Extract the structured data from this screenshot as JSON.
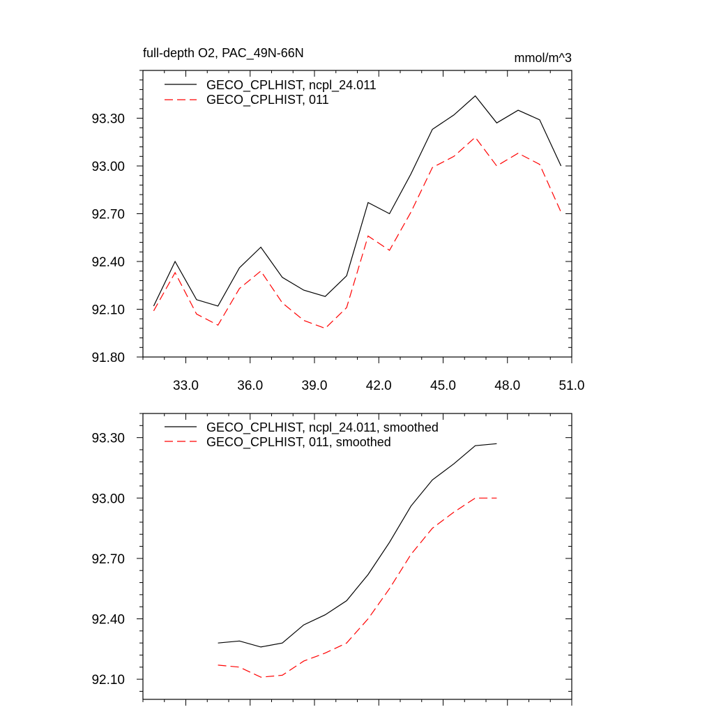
{
  "chart_data": [
    {
      "type": "line",
      "title_left": "full-depth O2, PAC_49N-66N",
      "title_right": "mmol/m^3",
      "xlabel": "",
      "ylabel": "",
      "xlim": [
        31.0,
        51.0
      ],
      "ylim": [
        91.8,
        93.6
      ],
      "xticks": [
        33.0,
        36.0,
        39.0,
        42.0,
        45.0,
        48.0,
        51.0
      ],
      "xtick_labels": [
        "33.0",
        "36.0",
        "39.0",
        "42.0",
        "45.0",
        "48.0",
        "51.0"
      ],
      "yticks": [
        91.8,
        92.1,
        92.4,
        92.7,
        93.0,
        93.3
      ],
      "ytick_labels": [
        "91.80",
        "92.10",
        "92.40",
        "92.70",
        "93.00",
        "93.30"
      ],
      "legend_position": "top-left",
      "series": [
        {
          "name": "GECO_CPLHIST, ncpl_24.011",
          "color": "#000000",
          "dash": "solid",
          "x": [
            31.5,
            32.5,
            33.5,
            34.5,
            35.5,
            36.5,
            37.5,
            38.5,
            39.5,
            40.5,
            41.5,
            42.5,
            43.5,
            44.5,
            45.5,
            46.5,
            47.5,
            48.5,
            49.5,
            50.5
          ],
          "values": [
            92.12,
            92.4,
            92.16,
            92.12,
            92.36,
            92.49,
            92.3,
            92.22,
            92.18,
            92.31,
            92.77,
            92.7,
            92.95,
            93.23,
            93.32,
            93.44,
            93.27,
            93.35,
            93.29,
            93.0
          ]
        },
        {
          "name": "GECO_CPLHIST, 011",
          "color": "#ff0000",
          "dash": "dashed",
          "x": [
            31.5,
            32.5,
            33.5,
            34.5,
            35.5,
            36.5,
            37.5,
            38.5,
            39.5,
            40.5,
            41.5,
            42.5,
            43.5,
            44.5,
            45.5,
            46.5,
            47.5,
            48.5,
            49.5,
            50.5
          ],
          "values": [
            92.09,
            92.33,
            92.07,
            92.0,
            92.23,
            92.34,
            92.14,
            92.03,
            91.98,
            92.11,
            92.56,
            92.47,
            92.71,
            92.99,
            93.06,
            93.18,
            93.0,
            93.08,
            93.01,
            92.71
          ]
        }
      ]
    },
    {
      "type": "line",
      "title_left": "",
      "title_right": "",
      "xlabel": "",
      "ylabel": "",
      "xlim": [
        31.0,
        51.0
      ],
      "ylim": [
        92.0,
        93.42
      ],
      "xticks": [
        33.0,
        36.0,
        39.0,
        42.0,
        45.0,
        48.0,
        51.0
      ],
      "xtick_labels": [],
      "yticks": [
        92.1,
        92.4,
        92.7,
        93.0,
        93.3
      ],
      "ytick_labels": [
        "92.10",
        "92.40",
        "92.70",
        "93.00",
        "93.30"
      ],
      "legend_position": "top-left",
      "series": [
        {
          "name": "GECO_CPLHIST, ncpl_24.011, smoothed",
          "color": "#000000",
          "dash": "solid",
          "x": [
            34.5,
            35.5,
            36.5,
            37.5,
            38.5,
            39.5,
            40.5,
            41.5,
            42.5,
            43.5,
            44.5,
            45.5,
            46.5,
            47.5
          ],
          "values": [
            92.28,
            92.29,
            92.26,
            92.28,
            92.37,
            92.42,
            92.49,
            92.62,
            92.78,
            92.96,
            93.09,
            93.17,
            93.26,
            93.27
          ]
        },
        {
          "name": "GECO_CPLHIST, 011, smoothed",
          "color": "#ff0000",
          "dash": "dashed",
          "x": [
            34.5,
            35.5,
            36.5,
            37.5,
            38.5,
            39.5,
            40.5,
            41.5,
            42.5,
            43.5,
            44.5,
            45.5,
            46.5,
            47.5
          ],
          "values": [
            92.17,
            92.16,
            92.11,
            92.12,
            92.19,
            92.23,
            92.28,
            92.4,
            92.55,
            92.72,
            92.85,
            92.93,
            93.0,
            93.0
          ]
        }
      ]
    }
  ]
}
